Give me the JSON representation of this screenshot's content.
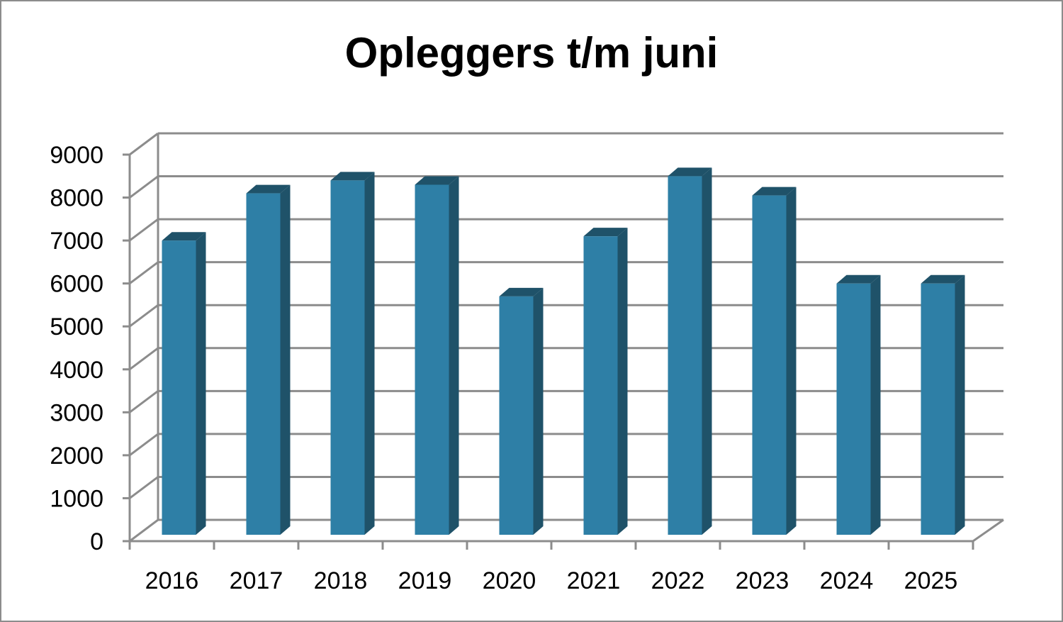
{
  "chart_data": {
    "type": "bar",
    "title": "Opleggers t/m juni",
    "xlabel": "",
    "ylabel": "",
    "categories": [
      "2016",
      "2017",
      "2018",
      "2019",
      "2020",
      "2021",
      "2022",
      "2023",
      "2024",
      "2025"
    ],
    "series": [
      {
        "values": [
          6850,
          7950,
          8250,
          8150,
          5550,
          6950,
          8350,
          7900,
          5850,
          5850
        ]
      }
    ],
    "ylim": [
      0,
      9000
    ],
    "ytick_labels": [
      "0",
      "1000",
      "2000",
      "3000",
      "4000",
      "5000",
      "6000",
      "7000",
      "8000",
      "9000"
    ],
    "grid": true,
    "legend": "none",
    "style": "3d-column",
    "colors": {
      "bar_front": "#2e7fa6",
      "bar_side": "#1f5269",
      "bar_top": "#3a8db5",
      "grid": "#8c8c8c"
    }
  }
}
